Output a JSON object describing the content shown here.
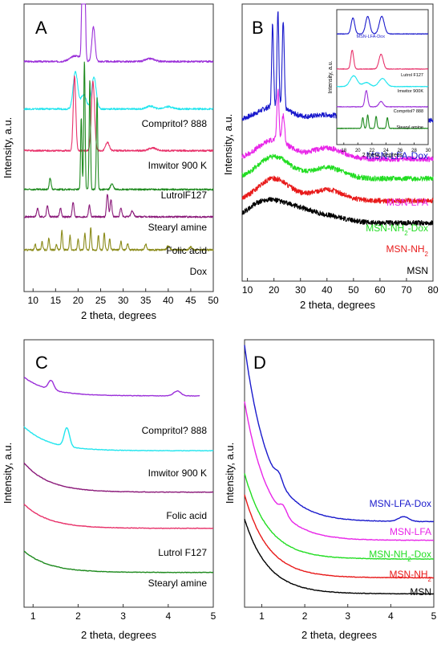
{
  "chart_data": [
    {
      "type": "line",
      "panel_label": "A",
      "xlabel": "2 theta, degrees",
      "ylabel": "Intensity, a.u.",
      "xlim": [
        8,
        50
      ],
      "x_ticks": [
        10,
        15,
        20,
        25,
        30,
        35,
        40,
        45,
        50
      ],
      "series": [
        {
          "name": "Compritol? 888",
          "color": "#9b30d9",
          "baseline": 0.8,
          "peaks": [
            [
              21.2,
              0.92,
              0.25
            ],
            [
              23.4,
              0.12,
              0.35
            ],
            [
              19.5,
              0.02,
              1.2
            ],
            [
              36.0,
              0.01,
              1.0
            ]
          ]
        },
        {
          "name": "Imwitor 900 K",
          "color": "#22e5ee",
          "baseline": 0.635,
          "peaks": [
            [
              19.4,
              0.13,
              0.5
            ],
            [
              23.5,
              0.11,
              0.5
            ],
            [
              21.2,
              0.05,
              0.6
            ],
            [
              36.0,
              0.01,
              0.8
            ],
            [
              40.0,
              0.008,
              1.0
            ]
          ]
        },
        {
          "name": "LutrolF127",
          "color": "#e8336b",
          "baseline": 0.49,
          "peaks": [
            [
              19.2,
              0.26,
              0.28
            ],
            [
              23.3,
              0.24,
              0.35
            ],
            [
              26.5,
              0.03,
              0.4
            ],
            [
              36.5,
              0.01,
              0.8
            ]
          ]
        },
        {
          "name": "Stearyl amine",
          "color": "#1e8a1e",
          "baseline": 0.355,
          "peaks": [
            [
              21.4,
              0.45,
              0.15
            ],
            [
              22.6,
              0.38,
              0.15
            ],
            [
              24.2,
              0.32,
              0.15
            ],
            [
              20.7,
              0.25,
              0.15
            ],
            [
              13.8,
              0.04,
              0.2
            ],
            [
              27.5,
              0.02,
              0.3
            ]
          ]
        },
        {
          "name": "Folic acid",
          "color": "#8b1a7a",
          "baseline": 0.26,
          "peaks": [
            [
              11.0,
              0.03,
              0.2
            ],
            [
              13.2,
              0.04,
              0.2
            ],
            [
              16.1,
              0.03,
              0.2
            ],
            [
              18.9,
              0.05,
              0.2
            ],
            [
              22.5,
              0.04,
              0.2
            ],
            [
              26.5,
              0.08,
              0.2
            ],
            [
              27.3,
              0.06,
              0.2
            ],
            [
              29.5,
              0.03,
              0.2
            ],
            [
              32.0,
              0.02,
              0.3
            ]
          ]
        },
        {
          "name": "Dox",
          "color": "#8b8b1a",
          "baseline": 0.145,
          "peaks": [
            [
              10.5,
              0.02,
              0.15
            ],
            [
              12.0,
              0.03,
              0.15
            ],
            [
              13.5,
              0.04,
              0.15
            ],
            [
              15.2,
              0.02,
              0.15
            ],
            [
              16.4,
              0.07,
              0.15
            ],
            [
              18.2,
              0.05,
              0.15
            ],
            [
              20.0,
              0.04,
              0.15
            ],
            [
              21.5,
              0.06,
              0.15
            ],
            [
              22.8,
              0.08,
              0.15
            ],
            [
              24.5,
              0.05,
              0.15
            ],
            [
              25.8,
              0.06,
              0.15
            ],
            [
              27.0,
              0.04,
              0.15
            ],
            [
              29.5,
              0.03,
              0.15
            ],
            [
              31.0,
              0.02,
              0.2
            ],
            [
              35.0,
              0.02,
              0.2
            ],
            [
              40.0,
              0.015,
              0.3
            ],
            [
              45.0,
              0.01,
              0.3
            ]
          ]
        }
      ]
    },
    {
      "type": "line",
      "panel_label": "B",
      "xlabel": "2 theta, degrees",
      "ylabel": "Intensity, a.u.",
      "xlim": [
        8,
        80
      ],
      "x_ticks": [
        10,
        20,
        30,
        40,
        50,
        60,
        70,
        80
      ],
      "series": [
        {
          "name": "MSN-LFA-Dox",
          "color": "#1a1acc",
          "baseline": 0.58,
          "humps": [
            [
              20,
              0.05,
              6
            ],
            [
              40,
              0.02,
              6
            ]
          ],
          "peaks": [
            [
              19.5,
              0.3,
              0.35
            ],
            [
              21.5,
              0.35,
              0.35
            ],
            [
              23.5,
              0.32,
              0.4
            ]
          ]
        },
        {
          "name": "MSN-LFA",
          "color": "#e826e8",
          "baseline": 0.44,
          "humps": [
            [
              20,
              0.07,
              6
            ],
            [
              40,
              0.04,
              6
            ]
          ],
          "peaks": [
            [
              21.5,
              0.18,
              0.4
            ],
            [
              23.5,
              0.1,
              0.5
            ]
          ]
        },
        {
          "name": "MSN-NH2-Dox",
          "color": "#22dd22",
          "baseline": 0.37,
          "humps": [
            [
              20,
              0.08,
              6
            ],
            [
              40,
              0.04,
              6
            ]
          ],
          "peaks": []
        },
        {
          "name": "MSN-NH2",
          "color": "#e81a1a",
          "baseline": 0.29,
          "humps": [
            [
              20,
              0.08,
              6
            ],
            [
              40,
              0.04,
              6
            ]
          ],
          "peaks": []
        },
        {
          "name": "MSN",
          "color": "#000000",
          "baseline": 0.21,
          "humps": [
            [
              17,
              0.08,
              7
            ],
            [
              30,
              0.04,
              6
            ],
            [
              42,
              0.02,
              6
            ]
          ],
          "peaks": []
        }
      ],
      "inset": {
        "xlabel": "2 theta, degrees",
        "ylabel": "Intensity, a.u.",
        "xlim": [
          17,
          30
        ],
        "x_ticks": [
          18,
          20,
          22,
          24,
          26,
          28,
          30
        ],
        "series": [
          {
            "name": "MSN-LFA-Dox",
            "color": "#1a1acc",
            "baseline": 0.82,
            "peaks": [
              [
                19.3,
                0.12,
                0.25
              ],
              [
                21.4,
                0.13,
                0.3
              ],
              [
                23.4,
                0.13,
                0.35
              ]
            ]
          },
          {
            "name": "Lutrol F127",
            "color": "#e8336b",
            "baseline": 0.56,
            "peaks": [
              [
                19.2,
                0.14,
                0.2
              ],
              [
                23.3,
                0.11,
                0.3
              ]
            ]
          },
          {
            "name": "Imwitor 900K",
            "color": "#22e5ee",
            "baseline": 0.43,
            "peaks": [
              [
                19.4,
                0.08,
                0.5
              ],
              [
                23.5,
                0.06,
                0.5
              ],
              [
                21.2,
                0.03,
                0.5
              ]
            ]
          },
          {
            "name": "Compritol? 888",
            "color": "#9b30d9",
            "baseline": 0.28,
            "peaks": [
              [
                21.2,
                0.12,
                0.2
              ],
              [
                23.3,
                0.04,
                0.3
              ]
            ]
          },
          {
            "name": "Stearyl amine",
            "color": "#1e8a1e",
            "baseline": 0.12,
            "peaks": [
              [
                20.7,
                0.08,
                0.12
              ],
              [
                21.4,
                0.1,
                0.12
              ],
              [
                22.6,
                0.09,
                0.12
              ],
              [
                24.2,
                0.08,
                0.12
              ]
            ]
          }
        ]
      }
    },
    {
      "type": "line",
      "panel_label": "C",
      "xlabel": "2 theta, degrees",
      "ylabel": "Intensity, a.u.",
      "xlim": [
        0.8,
        5
      ],
      "x_ticks": [
        1,
        2,
        3,
        4,
        5
      ],
      "series": [
        {
          "name": "Compritol? 888",
          "color": "#9b30d9",
          "end_x": 4.7,
          "level": 0.79,
          "decay_amp": 0.07,
          "peaks": [
            [
              1.4,
              0.035,
              0.06
            ],
            [
              4.2,
              0.018,
              0.08
            ]
          ]
        },
        {
          "name": "Imwitor 900 K",
          "color": "#22e5ee",
          "end_x": 5.0,
          "level": 0.585,
          "decay_amp": 0.09,
          "peaks": [
            [
              1.75,
              0.07,
              0.06
            ]
          ]
        },
        {
          "name": "Folic acid",
          "color": "#8b1a7a",
          "end_x": 5.0,
          "level": 0.43,
          "decay_amp": 0.11,
          "peaks": []
        },
        {
          "name": "Lutrol F127",
          "color": "#e8336b",
          "end_x": 5.0,
          "level": 0.295,
          "decay_amp": 0.09,
          "peaks": []
        },
        {
          "name": "Stearyl amine",
          "color": "#1e8a1e",
          "end_x": 5.0,
          "level": 0.13,
          "decay_amp": 0.08,
          "peaks": []
        }
      ]
    },
    {
      "type": "line",
      "panel_label": "D",
      "xlabel": "2 theta, degrees",
      "ylabel": "Intensity, a.u.",
      "xlim": [
        0.6,
        5
      ],
      "x_ticks": [
        1,
        2,
        3,
        4,
        5
      ],
      "series": [
        {
          "name": "MSN-LFA-Dox",
          "color": "#1a1acc",
          "level": 0.32,
          "decay_amp": 0.66,
          "peaks": [
            [
              1.4,
              0.03,
              0.08
            ],
            [
              4.3,
              0.018,
              0.12
            ]
          ]
        },
        {
          "name": "MSN-LFA",
          "color": "#e826e8",
          "level": 0.25,
          "decay_amp": 0.52,
          "peaks": [
            [
              1.5,
              0.03,
              0.08
            ]
          ]
        },
        {
          "name": "MSN-NH2-Dox",
          "color": "#22dd22",
          "level": 0.18,
          "decay_amp": 0.32,
          "peaks": []
        },
        {
          "name": "MSN-NH2",
          "color": "#e81a1a",
          "level": 0.11,
          "decay_amp": 0.31,
          "peaks": []
        },
        {
          "name": "MSN",
          "color": "#000000",
          "level": 0.05,
          "decay_amp": 0.28,
          "peaks": []
        }
      ]
    }
  ]
}
